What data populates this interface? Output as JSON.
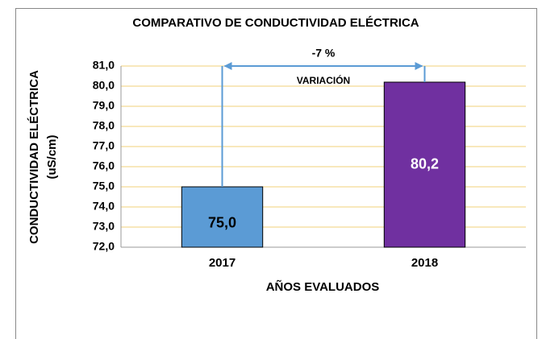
{
  "chart_data": {
    "type": "bar",
    "title": "COMPARATIVO DE CONDUCTIVIDAD ELÉCTRICA",
    "y_label": [
      "CONDUCTIVIDAD ELÉCTRICA",
      "(uS/cm)"
    ],
    "x_label": "AÑOS EVALUADOS",
    "categories": [
      "2017",
      "2018"
    ],
    "values": [
      75.0,
      80.2
    ],
    "value_labels": [
      "75,0",
      "80,2"
    ],
    "colors": [
      "#5b9bd5",
      "#7030a0"
    ],
    "annotations": [
      "-7 %",
      "VARIACIÓN"
    ],
    "ylim": [
      72,
      81
    ],
    "yticks": [
      {
        "value": 72,
        "label": "72,0"
      },
      {
        "value": 73,
        "label": "73,0"
      },
      {
        "value": 74,
        "label": "74,0"
      },
      {
        "value": 75,
        "label": "75,0"
      },
      {
        "value": 76,
        "label": "76,0"
      },
      {
        "value": 77,
        "label": "77,0"
      },
      {
        "value": 78,
        "label": "78,0"
      },
      {
        "value": 79,
        "label": "79,0"
      },
      {
        "value": 80,
        "label": "80,0"
      },
      {
        "value": 81,
        "label": "81,0"
      }
    ],
    "grid": true
  }
}
